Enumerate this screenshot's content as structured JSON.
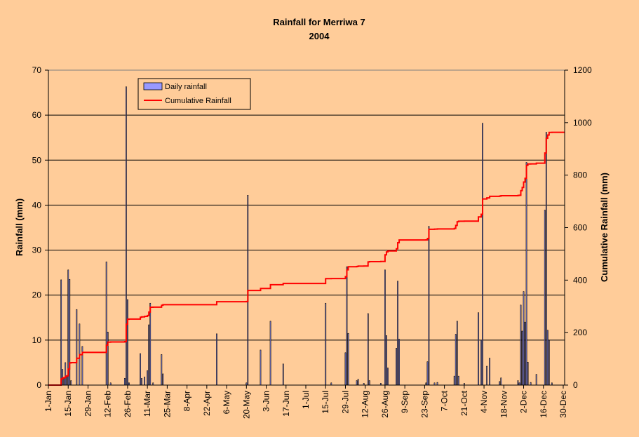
{
  "chart_data": {
    "type": "bar",
    "title": "Rainfall for Merriwa 7",
    "subtitle": "2004",
    "ylabel": "Rainfall (mm)",
    "y2label": "Cumulative Rainfall (mm)",
    "ylim": [
      0,
      70
    ],
    "y2lim": [
      0,
      1200
    ],
    "yticks": [
      "0",
      "10",
      "20",
      "30",
      "40",
      "50",
      "60",
      "70"
    ],
    "y2ticks": [
      "0",
      "200",
      "400",
      "600",
      "800",
      "1000",
      "1200"
    ],
    "xlim": [
      1,
      366
    ],
    "xticks": [
      {
        "day": 1,
        "label": "1-Jan"
      },
      {
        "day": 15,
        "label": "15-Jan"
      },
      {
        "day": 29,
        "label": "29-Jan"
      },
      {
        "day": 43,
        "label": "12-Feb"
      },
      {
        "day": 57,
        "label": "26-Feb"
      },
      {
        "day": 71,
        "label": "11-Mar"
      },
      {
        "day": 85,
        "label": "25-Mar"
      },
      {
        "day": 99,
        "label": "8-Apr"
      },
      {
        "day": 113,
        "label": "22-Apr"
      },
      {
        "day": 127,
        "label": "6-May"
      },
      {
        "day": 141,
        "label": "20-May"
      },
      {
        "day": 155,
        "label": "3-Jun"
      },
      {
        "day": 169,
        "label": "17-Jun"
      },
      {
        "day": 183,
        "label": "1-Jul"
      },
      {
        "day": 197,
        "label": "15-Jul"
      },
      {
        "day": 211,
        "label": "29-Jul"
      },
      {
        "day": 225,
        "label": "12-Aug"
      },
      {
        "day": 239,
        "label": "26-Aug"
      },
      {
        "day": 253,
        "label": "9-Sep"
      },
      {
        "day": 267,
        "label": "23-Sep"
      },
      {
        "day": 281,
        "label": "7-Oct"
      },
      {
        "day": 295,
        "label": "21-Oct"
      },
      {
        "day": 309,
        "label": "4-Nov"
      },
      {
        "day": 323,
        "label": "18-Nov"
      },
      {
        "day": 337,
        "label": "2-Dec"
      },
      {
        "day": 351,
        "label": "16-Dec"
      },
      {
        "day": 365,
        "label": "30-Dec"
      }
    ],
    "grid": true,
    "legend_position": "top-left",
    "series": [
      {
        "name": "Daily rainfall",
        "kind": "bar",
        "axis": "left",
        "color": "#9999FF",
        "points": [
          [
            10,
            23.4
          ],
          [
            11,
            3.5
          ],
          [
            12,
            1.5
          ],
          [
            13,
            5.0
          ],
          [
            14,
            2.0
          ],
          [
            15,
            25.6
          ],
          [
            16,
            23.5
          ],
          [
            17,
            1.0
          ],
          [
            21,
            16.8
          ],
          [
            23,
            13.6
          ],
          [
            25,
            8.6
          ],
          [
            42,
            27.4
          ],
          [
            43,
            11.8
          ],
          [
            45,
            0.5
          ],
          [
            55,
            1.5
          ],
          [
            56,
            66.3
          ],
          [
            57,
            19.0
          ],
          [
            58,
            0.5
          ],
          [
            66,
            7.0
          ],
          [
            67,
            1.5
          ],
          [
            69,
            1.8
          ],
          [
            71,
            3.2
          ],
          [
            72,
            13.4
          ],
          [
            73,
            18.2
          ],
          [
            75,
            0.5
          ],
          [
            81,
            6.8
          ],
          [
            82,
            2.5
          ],
          [
            120,
            11.4
          ],
          [
            141,
            0.5
          ],
          [
            142,
            42.2
          ],
          [
            151,
            7.8
          ],
          [
            158,
            14.2
          ],
          [
            167,
            4.7
          ],
          [
            197,
            18.2
          ],
          [
            201,
            0.5
          ],
          [
            211,
            7.2
          ],
          [
            212,
            26.3
          ],
          [
            213,
            11.5
          ],
          [
            219,
            1.0
          ],
          [
            220,
            1.3
          ],
          [
            224,
            0.4
          ],
          [
            227,
            15.9
          ],
          [
            228,
            1.0
          ],
          [
            236,
            0.4
          ],
          [
            239,
            25.6
          ],
          [
            240,
            11.0
          ],
          [
            241,
            3.8
          ],
          [
            247,
            8.2
          ],
          [
            248,
            23.1
          ],
          [
            249,
            10.2
          ],
          [
            268,
            0.5
          ],
          [
            269,
            5.2
          ],
          [
            270,
            35.3
          ],
          [
            274,
            0.5
          ],
          [
            276,
            0.6
          ],
          [
            288,
            2.0
          ],
          [
            289,
            11.3
          ],
          [
            290,
            14.2
          ],
          [
            291,
            2.0
          ],
          [
            295,
            0.4
          ],
          [
            305,
            16.1
          ],
          [
            307,
            10.0
          ],
          [
            308,
            58.2
          ],
          [
            311,
            4.2
          ],
          [
            313,
            6.0
          ],
          [
            320,
            0.8
          ],
          [
            321,
            1.6
          ],
          [
            333,
            1.0
          ],
          [
            334,
            0.5
          ],
          [
            335,
            17.8
          ],
          [
            336,
            12.0
          ],
          [
            337,
            20.8
          ],
          [
            338,
            14.0
          ],
          [
            339,
            49.5
          ],
          [
            340,
            5.1
          ],
          [
            342,
            0.6
          ],
          [
            346,
            2.4
          ],
          [
            352,
            38.9
          ],
          [
            353,
            56.2
          ],
          [
            354,
            12.2
          ],
          [
            355,
            10.0
          ],
          [
            357,
            0.5
          ]
        ]
      },
      {
        "name": "Cumulative Rainfall",
        "kind": "line",
        "axis": "right",
        "color": "#FF0000"
      }
    ]
  }
}
